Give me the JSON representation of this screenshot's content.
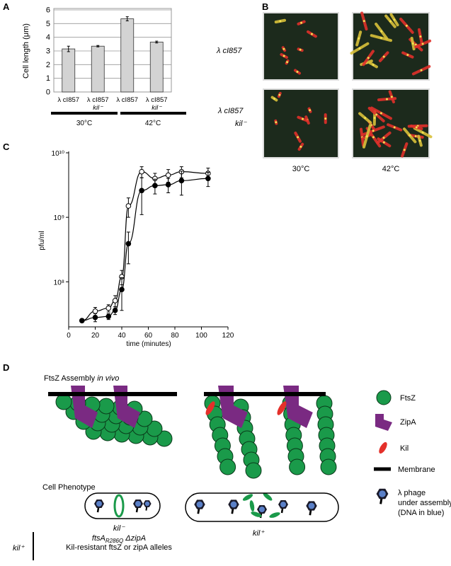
{
  "chart_data": [
    {
      "type": "bar",
      "panel": "A",
      "ylabel": "Cell length (μm)",
      "categories": [
        [
          "λ cI857"
        ],
        [
          "λ cI857",
          "kil⁻"
        ],
        [
          "λ cI857"
        ],
        [
          "λ cI857",
          "kil⁻"
        ]
      ],
      "values": [
        3.15,
        3.35,
        5.35,
        3.65
      ],
      "errors": [
        0.2,
        0.05,
        0.15,
        0.07
      ],
      "groups": [
        "30°C",
        "42°C"
      ],
      "color": "#d3d3d3",
      "ylim": [
        0,
        6
      ],
      "yticks": [
        0,
        1,
        2,
        3,
        4,
        5,
        6
      ],
      "grid": true
    },
    {
      "type": "line",
      "panel": "C",
      "xlabel": "time (minutes)",
      "ylabel": "pfu/ml",
      "x": [
        10,
        20,
        30,
        35,
        40,
        45,
        55,
        65,
        75,
        85,
        105
      ],
      "series": [
        {
          "marker": "open",
          "color": "#000000",
          "values": [
            25000000,
            35000000,
            39000000,
            51000000,
            120000000,
            1500000000,
            5100000000,
            4000000000,
            4500000000,
            5100000000,
            4800000000
          ],
          "errors": [
            0,
            5000000,
            5000000,
            10000000,
            30000000,
            500000000,
            1000000000,
            800000000,
            1000000000,
            1000000000,
            1000000000
          ]
        },
        {
          "marker": "filled",
          "color": "#000000",
          "values": [
            25000000,
            28000000,
            29000000,
            36000000,
            76000000,
            390000000,
            2600000000,
            3100000000,
            3200000000,
            3700000000,
            4000000000
          ],
          "errors": [
            0,
            4000000,
            3000000,
            5000000,
            40000000,
            200000000,
            1500000000,
            800000000,
            800000000,
            1500000000,
            1000000000
          ]
        }
      ],
      "log_y": true,
      "xlim": [
        0,
        120
      ],
      "xticks": [
        0,
        20,
        40,
        60,
        80,
        100,
        120
      ],
      "ylim": [
        20000000,
        10000000000
      ],
      "yticks": [
        {
          "value": 100000000,
          "label": "10⁸"
        },
        {
          "value": 1000000000,
          "label": "10⁹"
        },
        {
          "value": 10000000000,
          "label": "10¹⁰"
        }
      ]
    }
  ],
  "panel_b": {
    "label": "B",
    "rows": [
      [
        "λ cI857"
      ],
      [
        "λ cI857",
        "kil⁻"
      ]
    ],
    "columns": [
      "30°C",
      "42°C"
    ]
  },
  "panel_d": {
    "label": "D",
    "title": [
      "FtsZ Assembly ",
      "in vivo"
    ],
    "legend": [
      "FtsZ",
      "ZipA",
      "Kil",
      "Membrane",
      [
        "λ phage",
        "under assembly",
        "(DNA in blue)"
      ]
    ],
    "cell_phenotype": "Cell Phenotype",
    "kil_minus": "kil⁻",
    "kil_plus": "kil⁺",
    "suppressors": {
      "label": "kil⁺",
      "lines": [
        [
          "ftsA",
          "R286Q",
          " ΔzipA"
        ],
        "Kil-resistant ftsZ or zipA alleles"
      ]
    }
  }
}
